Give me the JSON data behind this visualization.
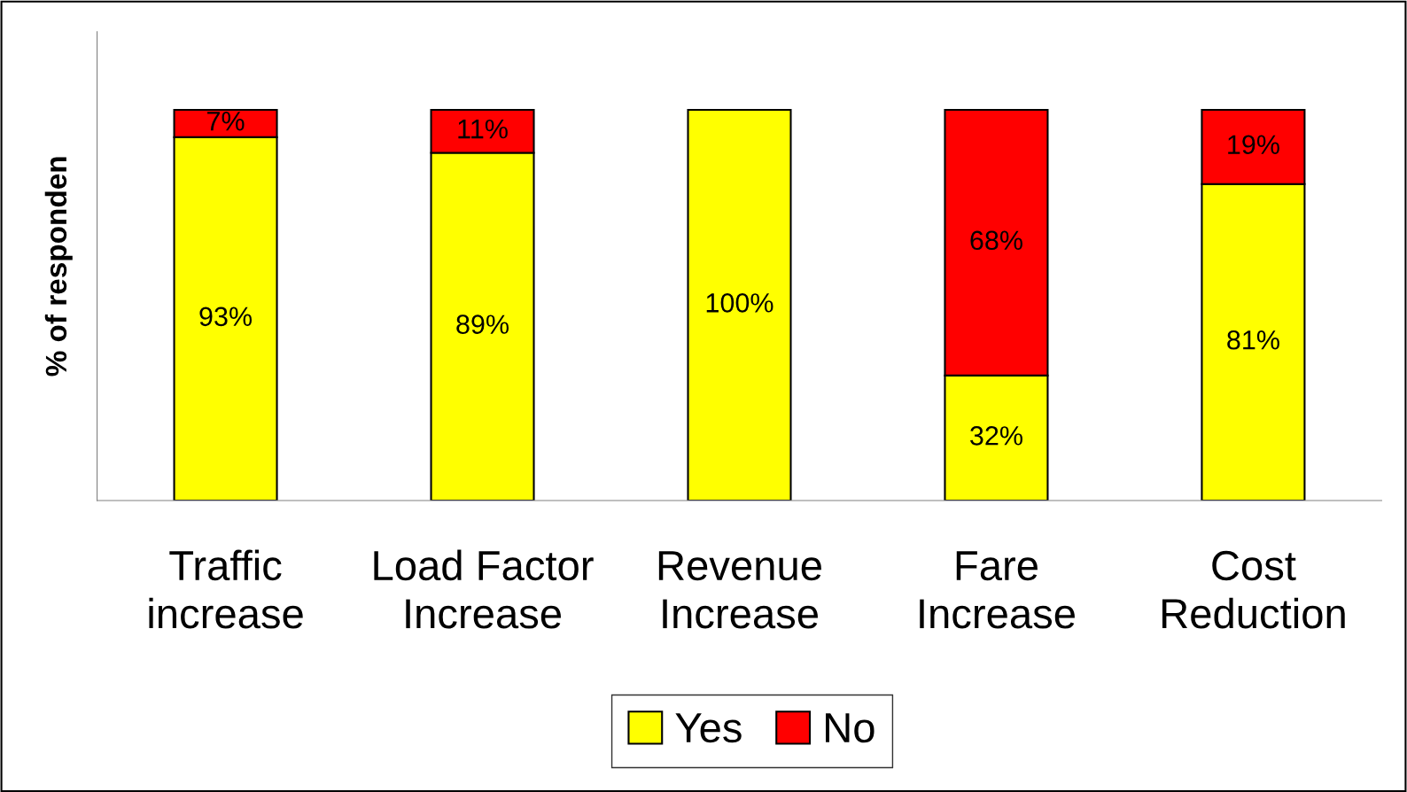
{
  "chart_data": {
    "type": "bar",
    "stacked": true,
    "ylabel": "% of responden",
    "categories": [
      "Traffic\nincrease",
      "Load Factor\nIncrease",
      "Revenue\nIncrease",
      "Fare\nIncrease",
      "Cost\nReduction"
    ],
    "series": [
      {
        "name": "Yes",
        "color": "#ffff00",
        "values": [
          93,
          89,
          100,
          32,
          81
        ],
        "value_labels": [
          "93%",
          "89%",
          "100%",
          "32%",
          "81%"
        ]
      },
      {
        "name": "No",
        "color": "#ff0000",
        "values": [
          7,
          11,
          0,
          68,
          19
        ],
        "value_labels": [
          "7%",
          "11%",
          null,
          "68%",
          "19%"
        ]
      }
    ],
    "ylim": [
      0,
      120
    ],
    "tick_labels": "x",
    "grid": false,
    "legend": "bottom"
  }
}
